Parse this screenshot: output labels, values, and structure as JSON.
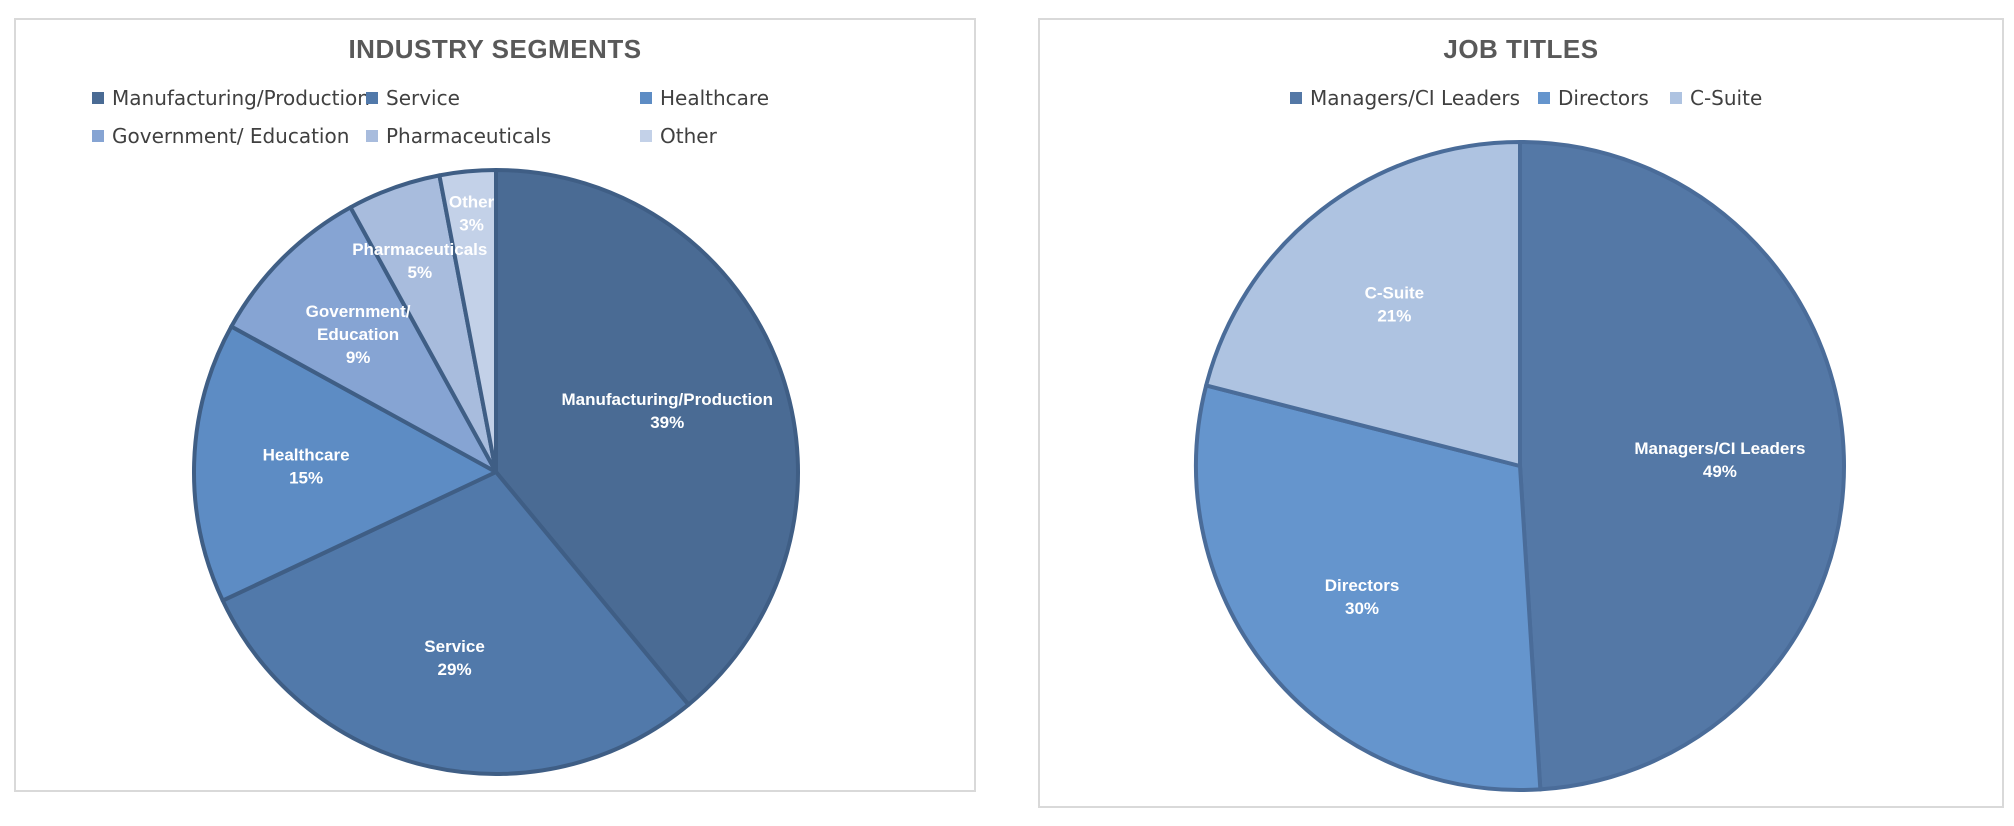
{
  "chart_data": [
    {
      "type": "pie",
      "title": "INDUSTRY SEGMENTS",
      "categories": [
        "Manufacturing/Production",
        "Service",
        "Healthcare",
        "Government/ Education",
        "Pharmaceuticals",
        "Other"
      ],
      "values": [
        39,
        29,
        15,
        9,
        5,
        3
      ],
      "data_labels": [
        {
          "lines": [
            "Manufacturing/Production",
            "39%"
          ]
        },
        {
          "lines": [
            "Service",
            "29%"
          ]
        },
        {
          "lines": [
            "Healthcare",
            "15%"
          ]
        },
        {
          "lines": [
            "Government/",
            "Education",
            "9%"
          ]
        },
        {
          "lines": [
            "Pharmaceuticals",
            "5%"
          ]
        },
        {
          "lines": [
            "Other",
            "3%"
          ]
        }
      ],
      "colors": [
        "#4a6b94",
        "#5179aa",
        "#5d8cc4",
        "#86a4d3",
        "#a8bcdd",
        "#c3d1e8"
      ],
      "legend_position": "top"
    },
    {
      "type": "pie",
      "title": "JOB TITLES",
      "categories": [
        "Managers/CI Leaders",
        "Directors",
        "C-Suite"
      ],
      "values": [
        49,
        30,
        21
      ],
      "data_labels": [
        {
          "lines": [
            "Managers/CI Leaders",
            "49%"
          ]
        },
        {
          "lines": [
            "Directors",
            "30%"
          ]
        },
        {
          "lines": [
            "C-Suite",
            "21%"
          ]
        }
      ],
      "colors": [
        "#5478a6",
        "#6595cd",
        "#aec3e1"
      ],
      "legend_position": "top"
    }
  ]
}
